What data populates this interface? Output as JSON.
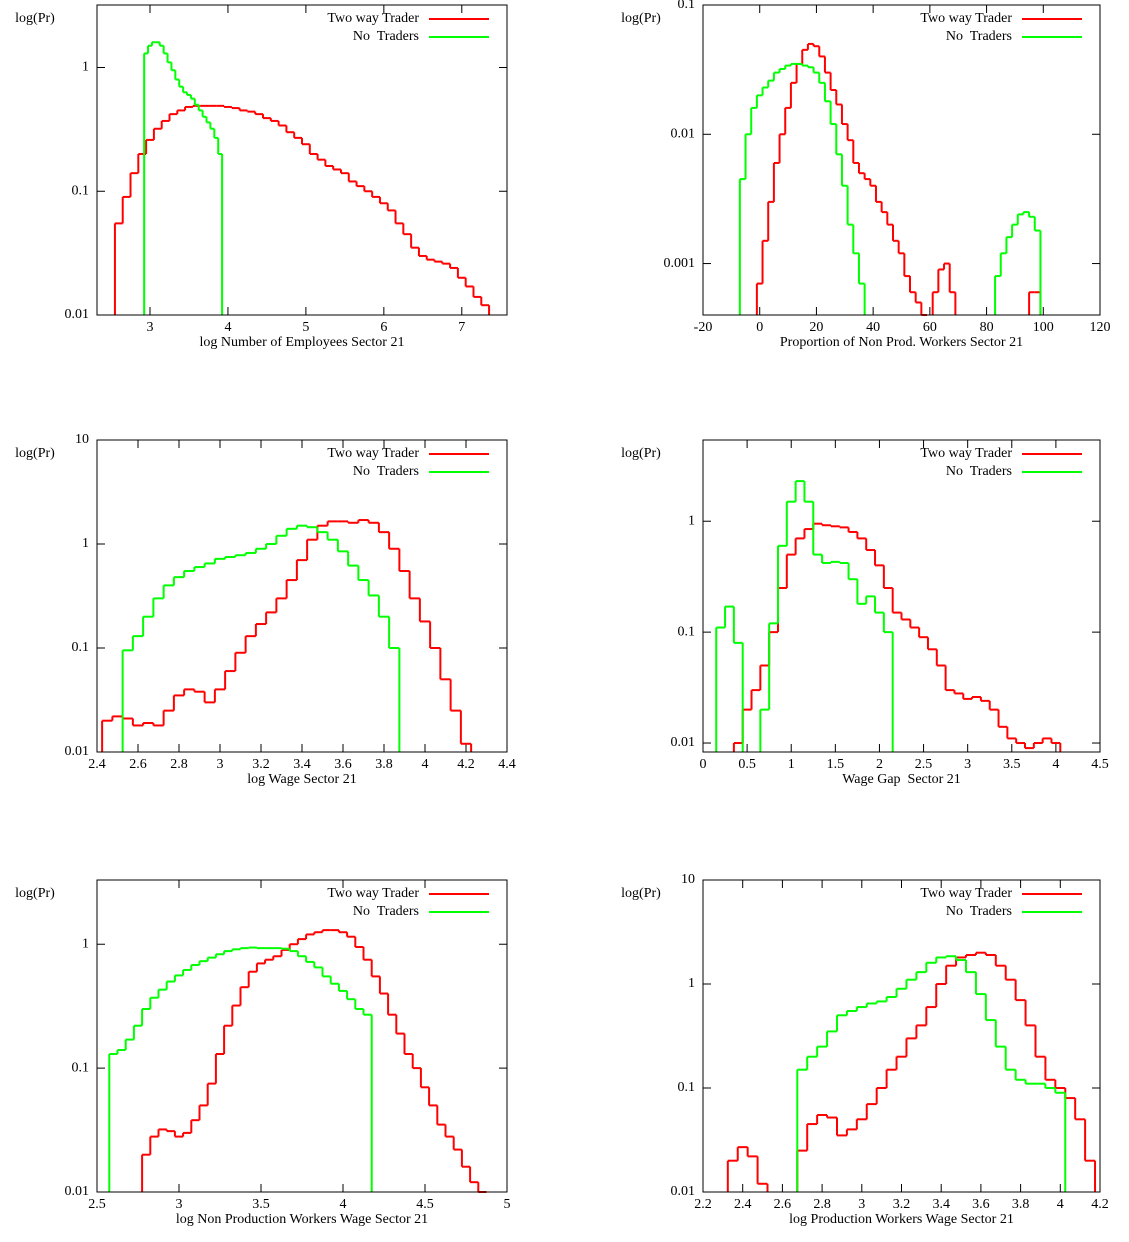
{
  "chart_data": [
    {
      "type": "line",
      "ylabel": "log(Pr)",
      "xlabel": "log Number of Employees Sector 21",
      "log_y": true,
      "grid": false,
      "legend": "top-right",
      "xlim": [
        2.32,
        7.58
      ],
      "ylim": [
        0.01,
        3.2
      ],
      "xticks": [
        3,
        4,
        5,
        6,
        7
      ],
      "yticks": [
        0.01,
        0.1,
        1
      ],
      "series": [
        {
          "name": "Two way Trader",
          "color": "#ff0000",
          "x": [
            2.6,
            2.7,
            2.8,
            2.9,
            3.0,
            3.1,
            3.2,
            3.3,
            3.4,
            3.5,
            3.6,
            3.7,
            3.8,
            3.9,
            4.0,
            4.1,
            4.2,
            4.3,
            4.4,
            4.5,
            4.6,
            4.7,
            4.8,
            4.9,
            5.0,
            5.1,
            5.2,
            5.3,
            5.4,
            5.5,
            5.6,
            5.7,
            5.8,
            5.9,
            6.0,
            6.1,
            6.2,
            6.3,
            6.4,
            6.5,
            6.6,
            6.7,
            6.8,
            6.9,
            7.0,
            7.1,
            7.2,
            7.3
          ],
          "values": [
            0.055,
            0.09,
            0.14,
            0.2,
            0.26,
            0.32,
            0.37,
            0.42,
            0.45,
            0.48,
            0.49,
            0.49,
            0.49,
            0.49,
            0.48,
            0.47,
            0.45,
            0.44,
            0.42,
            0.39,
            0.37,
            0.34,
            0.3,
            0.27,
            0.24,
            0.2,
            0.18,
            0.16,
            0.15,
            0.14,
            0.12,
            0.11,
            0.1,
            0.09,
            0.08,
            0.07,
            0.055,
            0.045,
            0.035,
            0.03,
            0.028,
            0.027,
            0.026,
            0.024,
            0.02,
            0.017,
            0.014,
            0.012
          ]
        },
        {
          "name": "No  Traders",
          "color": "#00ff00",
          "x": [
            2.95,
            3.0,
            3.05,
            3.1,
            3.15,
            3.2,
            3.25,
            3.3,
            3.35,
            3.4,
            3.45,
            3.5,
            3.55,
            3.6,
            3.65,
            3.7,
            3.75,
            3.8,
            3.85,
            3.9
          ],
          "values": [
            1.3,
            1.5,
            1.6,
            1.6,
            1.5,
            1.3,
            1.1,
            0.95,
            0.8,
            0.7,
            0.63,
            0.6,
            0.56,
            0.5,
            0.45,
            0.4,
            0.36,
            0.32,
            0.27,
            0.2
          ]
        }
      ]
    },
    {
      "type": "line",
      "ylabel": "log(Pr)",
      "xlabel": "Proportion of Non Prod. Workers Sector 21",
      "log_y": true,
      "grid": false,
      "legend": "top-right",
      "xlim": [
        -20,
        120
      ],
      "ylim": [
        0.0004,
        0.1
      ],
      "xticks": [
        -20,
        0,
        20,
        40,
        60,
        80,
        100,
        120
      ],
      "yticks": [
        0.001,
        0.01,
        0.1
      ],
      "series": [
        {
          "name": "Two way Trader",
          "color": "#ff0000",
          "x": [
            0,
            2,
            4,
            6,
            8,
            10,
            12,
            14,
            16,
            18,
            20,
            22,
            24,
            26,
            28,
            30,
            32,
            34,
            36,
            38,
            40,
            42,
            44,
            46,
            48,
            50,
            52,
            54,
            56,
            58,
            60,
            62,
            64,
            66,
            68,
            70,
            72,
            74,
            76,
            78,
            80,
            82,
            84,
            86,
            88,
            90,
            92,
            94,
            96,
            98
          ],
          "values": [
            0.0007,
            0.0015,
            0.003,
            0.006,
            0.01,
            0.016,
            0.025,
            0.035,
            0.045,
            0.05,
            0.048,
            0.04,
            0.03,
            0.022,
            0.017,
            0.012,
            0.009,
            0.006,
            0.005,
            0.0045,
            0.004,
            0.003,
            0.0025,
            0.002,
            0.0015,
            0.0012,
            0.0008,
            0.0006,
            0.0005,
            0.0004,
            null,
            0.0006,
            0.0009,
            0.001,
            0.0006,
            null,
            null,
            null,
            null,
            null,
            null,
            null,
            null,
            null,
            null,
            null,
            null,
            null,
            0.0006,
            0.0006
          ]
        },
        {
          "name": "No  Traders",
          "color": "#00ff00",
          "x": [
            -6,
            -4,
            -2,
            0,
            2,
            4,
            6,
            8,
            10,
            12,
            14,
            16,
            18,
            20,
            22,
            24,
            26,
            28,
            30,
            32,
            34,
            36,
            38,
            40,
            42,
            44,
            46,
            48,
            50,
            52,
            54,
            56,
            58,
            60,
            62,
            64,
            66,
            68,
            70,
            72,
            74,
            76,
            78,
            80,
            82,
            84,
            86,
            88,
            90,
            92,
            94,
            96,
            98
          ],
          "values": [
            0.0045,
            0.01,
            0.016,
            0.02,
            0.023,
            0.026,
            0.03,
            0.032,
            0.034,
            0.035,
            0.035,
            0.034,
            0.033,
            0.03,
            0.025,
            0.018,
            0.012,
            0.007,
            0.004,
            0.002,
            0.0012,
            0.0007,
            null,
            null,
            null,
            null,
            null,
            null,
            null,
            null,
            null,
            null,
            null,
            null,
            null,
            null,
            null,
            null,
            null,
            null,
            null,
            null,
            null,
            null,
            null,
            0.0008,
            0.0012,
            0.0016,
            0.002,
            0.0024,
            0.0025,
            0.0023,
            0.0018
          ]
        }
      ]
    },
    {
      "type": "line",
      "ylabel": "log(Pr)",
      "xlabel": "log Wage Sector 21",
      "log_y": true,
      "grid": false,
      "legend": "top-right",
      "xlim": [
        2.4,
        4.4
      ],
      "ylim": [
        0.01,
        10
      ],
      "xticks": [
        2.4,
        2.6,
        2.8,
        3,
        3.2,
        3.4,
        3.6,
        3.8,
        4,
        4.2,
        4.4
      ],
      "yticks": [
        0.01,
        0.1,
        1,
        10
      ],
      "series": [
        {
          "name": "Two way Trader",
          "color": "#ff0000",
          "x": [
            2.45,
            2.5,
            2.55,
            2.6,
            2.65,
            2.7,
            2.75,
            2.8,
            2.85,
            2.9,
            2.95,
            3.0,
            3.05,
            3.1,
            3.15,
            3.2,
            3.25,
            3.3,
            3.35,
            3.4,
            3.45,
            3.5,
            3.55,
            3.6,
            3.65,
            3.7,
            3.75,
            3.8,
            3.85,
            3.9,
            3.95,
            4.0,
            4.05,
            4.1,
            4.15,
            4.2
          ],
          "values": [
            0.02,
            0.022,
            0.021,
            0.018,
            0.019,
            0.018,
            0.025,
            0.035,
            0.04,
            0.038,
            0.03,
            0.04,
            0.06,
            0.09,
            0.13,
            0.17,
            0.22,
            0.3,
            0.45,
            0.7,
            1.1,
            1.5,
            1.65,
            1.65,
            1.6,
            1.7,
            1.6,
            1.3,
            0.9,
            0.55,
            0.3,
            0.18,
            0.1,
            0.05,
            0.025,
            0.012
          ]
        },
        {
          "name": "No  Traders",
          "color": "#00ff00",
          "x": [
            2.55,
            2.6,
            2.65,
            2.7,
            2.75,
            2.8,
            2.85,
            2.9,
            2.95,
            3.0,
            3.05,
            3.1,
            3.15,
            3.2,
            3.25,
            3.3,
            3.35,
            3.4,
            3.45,
            3.5,
            3.55,
            3.6,
            3.65,
            3.7,
            3.75,
            3.8,
            3.85
          ],
          "values": [
            0.095,
            0.13,
            0.2,
            0.3,
            0.4,
            0.48,
            0.55,
            0.6,
            0.65,
            0.72,
            0.75,
            0.78,
            0.82,
            0.9,
            1.0,
            1.2,
            1.4,
            1.5,
            1.45,
            1.3,
            1.1,
            0.85,
            0.62,
            0.45,
            0.32,
            0.2,
            0.1
          ]
        }
      ]
    },
    {
      "type": "line",
      "ylabel": "log(Pr)",
      "xlabel": "Wage Gap  Sector 21",
      "log_y": true,
      "grid": false,
      "legend": "top-right",
      "xlim": [
        0,
        4.5
      ],
      "ylim": [
        0.0083,
        5.4
      ],
      "xticks": [
        0,
        0.5,
        1,
        1.5,
        2,
        2.5,
        3,
        3.5,
        4,
        4.5
      ],
      "yticks": [
        0.01,
        0.1,
        1
      ],
      "series": [
        {
          "name": "Two way Trader",
          "color": "#ff0000",
          "x": [
            0.4,
            0.5,
            0.6,
            0.7,
            0.8,
            0.9,
            1.0,
            1.1,
            1.2,
            1.3,
            1.4,
            1.5,
            1.6,
            1.7,
            1.8,
            1.9,
            2.0,
            2.1,
            2.2,
            2.3,
            2.4,
            2.5,
            2.6,
            2.7,
            2.8,
            2.9,
            3.0,
            3.1,
            3.2,
            3.3,
            3.4,
            3.5,
            3.6,
            3.7,
            3.8,
            3.9,
            4.0
          ],
          "values": [
            0.01,
            0.02,
            0.03,
            0.05,
            0.1,
            0.25,
            0.5,
            0.7,
            0.85,
            0.95,
            0.92,
            0.9,
            0.88,
            0.8,
            0.7,
            0.55,
            0.4,
            0.25,
            0.15,
            0.13,
            0.11,
            0.09,
            0.07,
            0.05,
            0.03,
            0.028,
            0.025,
            0.026,
            0.024,
            0.02,
            0.014,
            0.011,
            0.01,
            0.009,
            0.01,
            0.011,
            0.01
          ]
        },
        {
          "name": "No  Traders",
          "color": "#00ff00",
          "x": [
            0.2,
            0.3,
            0.4,
            0.5,
            0.6,
            0.7,
            0.8,
            0.9,
            1.0,
            1.1,
            1.2,
            1.3,
            1.4,
            1.5,
            1.6,
            1.7,
            1.8,
            1.9,
            2.0,
            2.1
          ],
          "values": [
            0.11,
            0.17,
            0.08,
            null,
            null,
            0.02,
            0.12,
            0.6,
            1.5,
            2.3,
            1.5,
            0.5,
            0.42,
            0.43,
            0.42,
            0.3,
            0.18,
            0.21,
            0.15,
            0.1
          ]
        }
      ]
    },
    {
      "type": "line",
      "ylabel": "log(Pr)",
      "xlabel": "log Non Production Workers Wage Sector 21",
      "log_y": true,
      "grid": false,
      "legend": "top-right",
      "xlim": [
        2.5,
        5
      ],
      "ylim": [
        0.01,
        3.3
      ],
      "xticks": [
        2.5,
        3,
        3.5,
        4,
        4.5,
        5
      ],
      "yticks": [
        0.01,
        0.1,
        1
      ],
      "series": [
        {
          "name": "Two way Trader",
          "color": "#ff0000",
          "x": [
            2.8,
            2.85,
            2.9,
            2.95,
            3.0,
            3.05,
            3.1,
            3.15,
            3.2,
            3.25,
            3.3,
            3.35,
            3.4,
            3.45,
            3.5,
            3.55,
            3.6,
            3.65,
            3.7,
            3.75,
            3.8,
            3.85,
            3.9,
            3.95,
            4.0,
            4.05,
            4.1,
            4.15,
            4.2,
            4.25,
            4.3,
            4.35,
            4.4,
            4.45,
            4.5,
            4.55,
            4.6,
            4.65,
            4.7,
            4.75,
            4.8,
            4.85
          ],
          "values": [
            0.02,
            0.028,
            0.032,
            0.031,
            0.028,
            0.03,
            0.038,
            0.05,
            0.075,
            0.13,
            0.22,
            0.32,
            0.45,
            0.6,
            0.7,
            0.75,
            0.8,
            0.9,
            1.0,
            1.1,
            1.2,
            1.25,
            1.3,
            1.3,
            1.25,
            1.15,
            0.95,
            0.75,
            0.55,
            0.4,
            0.27,
            0.19,
            0.13,
            0.1,
            0.07,
            0.05,
            0.035,
            0.028,
            0.022,
            0.016,
            0.012,
            0.01
          ]
        },
        {
          "name": "No  Traders",
          "color": "#00ff00",
          "x": [
            2.6,
            2.65,
            2.7,
            2.75,
            2.8,
            2.85,
            2.9,
            2.95,
            3.0,
            3.05,
            3.1,
            3.15,
            3.2,
            3.25,
            3.3,
            3.35,
            3.4,
            3.45,
            3.5,
            3.55,
            3.6,
            3.65,
            3.7,
            3.75,
            3.8,
            3.85,
            3.9,
            3.95,
            4.0,
            4.05,
            4.1,
            4.15
          ],
          "values": [
            0.13,
            0.14,
            0.17,
            0.22,
            0.3,
            0.37,
            0.43,
            0.5,
            0.56,
            0.62,
            0.68,
            0.73,
            0.78,
            0.83,
            0.88,
            0.91,
            0.93,
            0.94,
            0.93,
            0.93,
            0.93,
            0.92,
            0.88,
            0.8,
            0.72,
            0.65,
            0.55,
            0.48,
            0.42,
            0.36,
            0.3,
            0.27
          ]
        }
      ]
    },
    {
      "type": "line",
      "ylabel": "log(Pr)",
      "xlabel": "log Production Workers Wage Sector 21",
      "log_y": true,
      "grid": false,
      "legend": "top-right",
      "xlim": [
        2.2,
        4.2
      ],
      "ylim": [
        0.01,
        10
      ],
      "xticks": [
        2.2,
        2.4,
        2.6,
        2.8,
        3,
        3.2,
        3.4,
        3.6,
        3.8,
        4,
        4.2
      ],
      "yticks": [
        0.01,
        0.1,
        1,
        10
      ],
      "series": [
        {
          "name": "Two way Trader",
          "color": "#ff0000",
          "x": [
            2.35,
            2.4,
            2.45,
            2.5,
            2.55,
            2.6,
            2.65,
            2.7,
            2.75,
            2.8,
            2.85,
            2.9,
            2.95,
            3.0,
            3.05,
            3.1,
            3.15,
            3.2,
            3.25,
            3.3,
            3.35,
            3.4,
            3.45,
            3.5,
            3.55,
            3.6,
            3.65,
            3.7,
            3.75,
            3.8,
            3.85,
            3.9,
            3.95,
            4.0,
            4.05,
            4.1,
            4.15
          ],
          "values": [
            0.02,
            0.027,
            0.022,
            0.012,
            null,
            null,
            null,
            0.025,
            0.045,
            0.055,
            0.052,
            0.035,
            0.04,
            0.05,
            0.07,
            0.1,
            0.15,
            0.2,
            0.3,
            0.4,
            0.6,
            1.0,
            1.5,
            1.8,
            1.9,
            2.0,
            1.9,
            1.5,
            1.1,
            0.7,
            0.4,
            0.2,
            0.12,
            0.1,
            0.08,
            0.05,
            0.02
          ]
        },
        {
          "name": "No  Traders",
          "color": "#00ff00",
          "x": [
            2.7,
            2.75,
            2.8,
            2.85,
            2.9,
            2.95,
            3.0,
            3.05,
            3.1,
            3.15,
            3.2,
            3.25,
            3.3,
            3.35,
            3.4,
            3.45,
            3.5,
            3.55,
            3.6,
            3.65,
            3.7,
            3.75,
            3.8,
            3.85,
            3.9,
            3.95,
            4.0
          ],
          "values": [
            0.15,
            0.2,
            0.25,
            0.35,
            0.5,
            0.55,
            0.6,
            0.65,
            0.68,
            0.75,
            0.9,
            1.1,
            1.3,
            1.6,
            1.8,
            1.85,
            1.7,
            1.3,
            0.8,
            0.45,
            0.25,
            0.15,
            0.12,
            0.11,
            0.11,
            0.1,
            0.09
          ]
        }
      ]
    }
  ]
}
